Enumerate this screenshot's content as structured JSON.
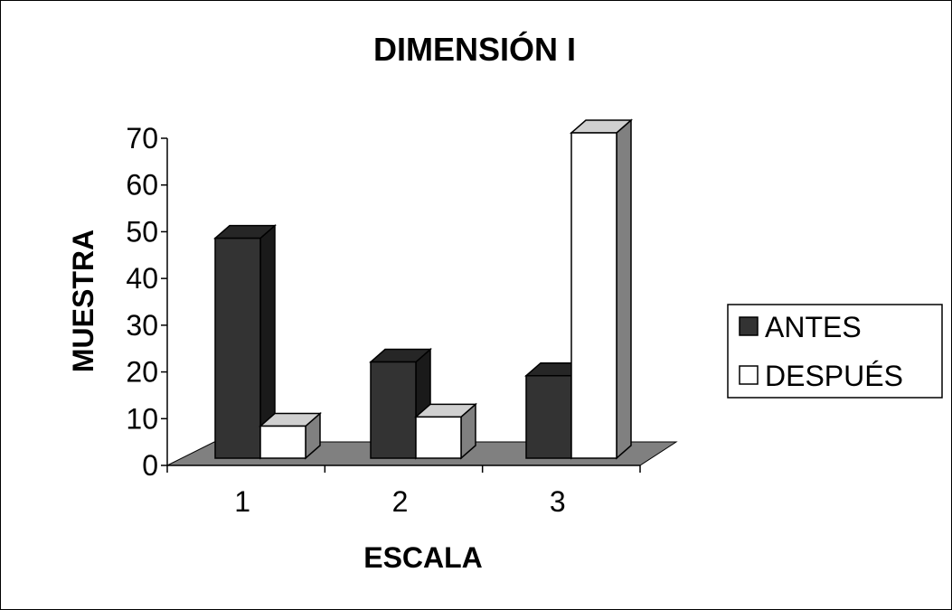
{
  "chart_data": {
    "type": "bar",
    "title": "DIMENSIÓN I",
    "xlabel": "ESCALA",
    "ylabel": "MUESTRA",
    "categories": [
      "1",
      "2",
      "3"
    ],
    "ylim": [
      0,
      70
    ],
    "yticks": [
      "0",
      "10",
      "20",
      "30",
      "40",
      "50",
      "60",
      "70"
    ],
    "series": [
      {
        "name": "ANTES",
        "values": [
          48,
          21,
          18
        ],
        "color": "#333333",
        "side_color": "#1a1a1a",
        "top_color": "#262626"
      },
      {
        "name": "DESPUÉS",
        "values": [
          7,
          9,
          71
        ],
        "color": "#ffffff",
        "side_color": "#808080",
        "top_color": "#d0d0d0"
      }
    ],
    "legend_position": "right",
    "grid": false,
    "floor_color": "#808080"
  }
}
